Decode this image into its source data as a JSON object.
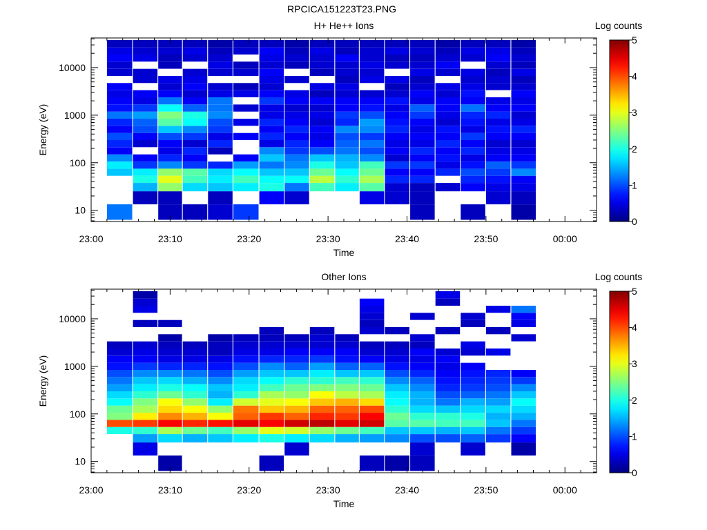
{
  "figure_title": "RPCICA151223T23.PNG",
  "chart_data": [
    {
      "type": "heatmap",
      "title": "H+ He++ Ions",
      "xlabel": "Time",
      "ylabel": "Energy (eV)",
      "x_ticks": [
        "23:00",
        "23:10",
        "23:20",
        "23:30",
        "23:40",
        "23:50",
        "00:00"
      ],
      "x_range_minutes": [
        0,
        64
      ],
      "y_ticks": [
        "10",
        "100",
        "1000",
        "10000"
      ],
      "y_scale": "log",
      "y_range": [
        5.8,
        42000
      ],
      "colorbar": {
        "label": "Log counts",
        "ticks": [
          "0",
          "1",
          "2",
          "3",
          "4",
          "5"
        ],
        "range": [
          0,
          5
        ],
        "colormap": "jet"
      },
      "time_bins_minutes": [
        2.0,
        5.3,
        8.5,
        11.6,
        14.8,
        18.0,
        21.3,
        24.5,
        27.7,
        30.9,
        34.0,
        37.2,
        40.4,
        43.6,
        46.8,
        50.0,
        53.2
      ],
      "energy_bins_log10": [
        0.95,
        1.3,
        1.5,
        1.65,
        1.8,
        1.95,
        2.1,
        2.25,
        2.4,
        2.55,
        2.7,
        2.85,
        3.0,
        3.15,
        3.3,
        3.45,
        3.6,
        3.75,
        3.9,
        4.05,
        4.2,
        4.35,
        4.5
      ],
      "values": [
        [
          1.2,
          null,
          null,
          null,
          1.6,
          1.8,
          1.3,
          0.6,
          0.8,
          1.0,
          0.6,
          0.8,
          1.2,
          0.7,
          0.6,
          0.5,
          0.6,
          null,
          0.4,
          0.4,
          0.6,
          0.5,
          0.3
        ],
        [
          null,
          0.3,
          1.5,
          2.0,
          1.8,
          0.9,
          0.6,
          null,
          0.4,
          0.6,
          1.0,
          1.1,
          1.4,
          0.9,
          0.5,
          0.6,
          null,
          0.4,
          0.4,
          null,
          0.5,
          0.4,
          0.3
        ],
        [
          0.3,
          0.3,
          2.6,
          3.0,
          2.6,
          1.3,
          0.8,
          0.5,
          0.6,
          1.0,
          1.6,
          2.3,
          2.5,
          1.9,
          1.2,
          0.6,
          0.4,
          0.5,
          null,
          0.3,
          0.3,
          0.4,
          0.3
        ],
        [
          0.3,
          null,
          1.7,
          2.2,
          2.3,
          0.9,
          0.6,
          0.8,
          0.4,
          0.9,
          1.3,
          1.9,
          2.0,
          1.1,
          0.6,
          0.4,
          0.6,
          0.5,
          0.4,
          null,
          0.4,
          0.5,
          0.3
        ],
        [
          0.4,
          0.3,
          1.6,
          1.8,
          1.7,
          0.8,
          null,
          0.3,
          0.8,
          0.5,
          0.9,
          1.0,
          1.3,
          1.2,
          1.2,
          0.5,
          0.4,
          null,
          0.4,
          0.5,
          0.4,
          0.3,
          0.2
        ],
        [
          0.9,
          null,
          1.8,
          2.2,
          1.9,
          1.4,
          0.6,
          null,
          null,
          0.6,
          null,
          0.5,
          null,
          0.4,
          null,
          0.5,
          0.3,
          null,
          0.4,
          0.3,
          null,
          0.4,
          0.3
        ],
        [
          null,
          0.6,
          2.0,
          1.9,
          1.6,
          1.2,
          1.6,
          1.3,
          0.5,
          0.8,
          0.6,
          0.8,
          0.5,
          0.5,
          0.9,
          0.6,
          0.4,
          0.5,
          0.6,
          0.4,
          0.5,
          0.6,
          0.3
        ],
        [
          null,
          0.4,
          1.2,
          1.9,
          1.6,
          1.3,
          1.2,
          0.9,
          0.8,
          0.6,
          0.8,
          0.6,
          0.5,
          0.4,
          0.6,
          0.5,
          null,
          0.4,
          null,
          0.3,
          0.4,
          0.3,
          0.2
        ],
        [
          null,
          null,
          2.2,
          2.8,
          2.4,
          2.0,
          1.6,
          1.0,
          0.6,
          0.5,
          0.6,
          0.4,
          0.5,
          0.4,
          0.6,
          0.3,
          0.5,
          null,
          0.3,
          0.4,
          0.4,
          0.5,
          0.3
        ],
        [
          null,
          null,
          1.8,
          2.1,
          1.9,
          1.6,
          1.5,
          1.2,
          1.1,
          1.0,
          1.3,
          0.8,
          0.9,
          0.6,
          0.6,
          0.4,
          0.5,
          0.3,
          0.4,
          0.4,
          0.6,
          0.3,
          0.3
        ],
        [
          null,
          0.5,
          2.3,
          2.7,
          2.4,
          2.2,
          1.3,
          1.0,
          1.2,
          0.9,
          1.3,
          1.4,
          1.0,
          0.7,
          0.6,
          0.4,
          null,
          0.5,
          0.4,
          0.5,
          0.4,
          0.4,
          0.3
        ],
        [
          null,
          0.4,
          0.4,
          0.8,
          0.6,
          0.9,
          0.4,
          0.6,
          0.5,
          0.6,
          0.8,
          0.7,
          0.6,
          0.5,
          0.7,
          0.4,
          0.3,
          0.5,
          null,
          0.4,
          0.3,
          0.5,
          0.3
        ],
        [
          0.3,
          0.3,
          0.3,
          0.8,
          0.6,
          0.9,
          0.6,
          0.8,
          0.5,
          0.6,
          0.5,
          0.6,
          0.9,
          1.1,
          0.5,
          0.6,
          0.4,
          0.3,
          0.5,
          0.4,
          0.3,
          0.4,
          0.3
        ],
        [
          null,
          null,
          0.4,
          null,
          0.8,
          0.5,
          0.7,
          0.6,
          0.8,
          0.6,
          0.7,
          0.4,
          0.5,
          0.6,
          0.6,
          0.4,
          0.5,
          null,
          0.4,
          0.6,
          0.4,
          0.3,
          0.2
        ],
        [
          0.3,
          null,
          0.6,
          0.8,
          1.0,
          0.7,
          0.5,
          0.8,
          0.6,
          0.9,
          0.5,
          0.7,
          0.8,
          1.2,
          0.6,
          0.7,
          0.5,
          0.4,
          0.5,
          null,
          0.4,
          0.5,
          0.3
        ],
        [
          null,
          0.4,
          0.5,
          0.7,
          0.9,
          1.1,
          0.6,
          0.5,
          0.4,
          0.6,
          0.7,
          0.5,
          0.8,
          0.6,
          0.5,
          null,
          0.4,
          0.4,
          0.3,
          0.4,
          0.6,
          0.5,
          0.3
        ],
        [
          0.2,
          0.3,
          0.5,
          0.6,
          1.3,
          0.9,
          0.6,
          0.5,
          0.4,
          0.6,
          0.8,
          0.5,
          0.4,
          0.6,
          0.5,
          0.6,
          0.4,
          0.3,
          0.5,
          0.3,
          0.4,
          0.3,
          0.2
        ]
      ]
    },
    {
      "type": "heatmap",
      "title": "Other Ions",
      "xlabel": "Time",
      "ylabel": "Energy (eV)",
      "x_ticks": [
        "23:00",
        "23:10",
        "23:20",
        "23:30",
        "23:40",
        "23:50",
        "00:00"
      ],
      "x_range_minutes": [
        0,
        64
      ],
      "y_ticks": [
        "10",
        "100",
        "1000",
        "10000"
      ],
      "y_scale": "log",
      "y_range": [
        5.8,
        42000
      ],
      "colorbar": {
        "label": "Log counts",
        "ticks": [
          "0",
          "1",
          "2",
          "3",
          "4",
          "5"
        ],
        "range": [
          0,
          5
        ],
        "colormap": "jet"
      },
      "time_bins_minutes": [
        2.0,
        5.3,
        8.5,
        11.6,
        14.8,
        18.0,
        21.3,
        24.5,
        27.7,
        30.9,
        34.0,
        37.2,
        40.4,
        43.6,
        46.8,
        50.0,
        53.2
      ],
      "energy_bins_log10": [
        0.95,
        1.3,
        1.5,
        1.65,
        1.8,
        1.95,
        2.1,
        2.25,
        2.4,
        2.55,
        2.7,
        2.85,
        3.0,
        3.15,
        3.3,
        3.45,
        3.6,
        3.75,
        3.9,
        4.05,
        4.2,
        4.35,
        4.5
      ],
      "values": [
        [
          null,
          null,
          null,
          2.0,
          4.0,
          2.5,
          2.4,
          1.9,
          1.7,
          1.4,
          1.2,
          1.0,
          0.7,
          0.6,
          0.4,
          0.3,
          null,
          null,
          null,
          null,
          null,
          null,
          null
        ],
        [
          null,
          0.5,
          1.4,
          2.1,
          4.1,
          3.2,
          2.7,
          2.5,
          2.1,
          1.8,
          1.6,
          1.3,
          0.9,
          0.6,
          0.5,
          0.4,
          null,
          null,
          0.3,
          null,
          0.5,
          0.4,
          0.2
        ],
        [
          0.2,
          null,
          1.7,
          2.7,
          4.4,
          3.7,
          3.3,
          3.1,
          2.4,
          2.0,
          1.7,
          1.3,
          0.8,
          0.5,
          0.4,
          0.3,
          0.2,
          null,
          0.3,
          null,
          null,
          null,
          null
        ],
        [
          null,
          null,
          1.5,
          2.4,
          4.2,
          3.5,
          3.1,
          2.6,
          2.1,
          1.9,
          1.5,
          1.2,
          0.8,
          0.5,
          0.4,
          0.3,
          null,
          null,
          null,
          null,
          null,
          null,
          null
        ],
        [
          null,
          null,
          1.6,
          2.2,
          4.3,
          3.1,
          2.6,
          1.8,
          1.5,
          1.6,
          1.3,
          1.0,
          0.7,
          0.5,
          0.3,
          0.3,
          0.2,
          null,
          null,
          null,
          null,
          null,
          null
        ],
        [
          null,
          null,
          1.8,
          2.6,
          4.5,
          3.9,
          3.8,
          2.9,
          2.1,
          1.8,
          1.7,
          1.4,
          1.0,
          0.7,
          0.5,
          0.4,
          0.3,
          null,
          null,
          null,
          null,
          null,
          null
        ],
        [
          0.3,
          null,
          2.0,
          3.0,
          4.4,
          4.1,
          3.4,
          3.0,
          2.7,
          2.2,
          1.9,
          1.6,
          1.3,
          0.8,
          0.5,
          0.4,
          0.3,
          0.3,
          null,
          null,
          null,
          null,
          null
        ],
        [
          null,
          0.4,
          1.8,
          2.9,
          4.6,
          3.9,
          3.5,
          3.1,
          2.6,
          2.4,
          2.1,
          1.6,
          1.1,
          0.8,
          0.6,
          0.4,
          0.3,
          null,
          null,
          null,
          null,
          null,
          null
        ],
        [
          null,
          null,
          1.7,
          2.6,
          4.7,
          4.2,
          3.9,
          3.4,
          3.1,
          2.5,
          2.1,
          1.8,
          1.4,
          0.9,
          0.6,
          0.4,
          0.4,
          0.3,
          null,
          null,
          null,
          null,
          null
        ],
        [
          null,
          null,
          1.5,
          2.4,
          4.5,
          4.1,
          3.9,
          3.5,
          2.8,
          2.5,
          2.2,
          1.6,
          1.1,
          0.7,
          0.6,
          0.4,
          0.3,
          null,
          null,
          null,
          null,
          null,
          null
        ],
        [
          0.3,
          null,
          1.4,
          2.2,
          4.6,
          4.4,
          4.0,
          3.3,
          2.7,
          2.4,
          2.1,
          1.6,
          1.1,
          0.6,
          0.4,
          0.3,
          null,
          0.4,
          0.3,
          0.4,
          0.5,
          0.6,
          null
        ],
        [
          0.2,
          null,
          1.3,
          1.6,
          2.3,
          2.4,
          2.1,
          1.9,
          1.8,
          1.6,
          1.3,
          1.0,
          0.7,
          0.5,
          0.4,
          0.3,
          null,
          0.3,
          null,
          null,
          null,
          null,
          null
        ],
        [
          0.3,
          0.4,
          1.0,
          1.6,
          2.3,
          2.1,
          1.7,
          1.5,
          1.5,
          1.3,
          1.1,
          0.8,
          0.6,
          0.5,
          0.6,
          0.3,
          0.4,
          null,
          null,
          0.4,
          null,
          null,
          null
        ],
        [
          null,
          null,
          1.0,
          1.5,
          2.2,
          2.1,
          1.6,
          1.2,
          1.0,
          0.8,
          0.7,
          0.6,
          0.5,
          0.6,
          0.4,
          null,
          null,
          0.3,
          null,
          null,
          null,
          0.3,
          0.5
        ],
        [
          null,
          0.4,
          1.1,
          1.6,
          2.2,
          2.0,
          1.7,
          1.5,
          1.1,
          0.9,
          0.8,
          0.7,
          0.6,
          null,
          0.4,
          0.5,
          null,
          null,
          0.3,
          0.4,
          null,
          null,
          null
        ],
        [
          null,
          null,
          0.9,
          1.2,
          1.6,
          1.5,
          1.7,
          1.4,
          1.2,
          1.0,
          0.9,
          0.8,
          null,
          null,
          0.5,
          null,
          null,
          0.3,
          null,
          null,
          0.5,
          null,
          null
        ],
        [
          null,
          0.2,
          0.6,
          0.9,
          1.2,
          1.5,
          1.7,
          1.9,
          1.6,
          1.3,
          0.9,
          0.6,
          null,
          null,
          null,
          null,
          0.4,
          null,
          0.5,
          0.6,
          1.2,
          null,
          null
        ]
      ]
    }
  ]
}
